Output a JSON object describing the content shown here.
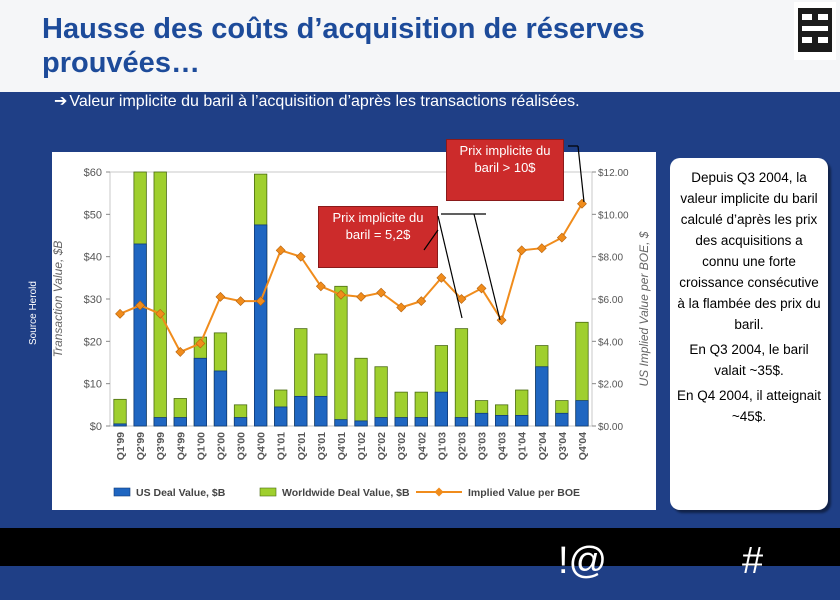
{
  "title": "Hausse des coûts d’acquisition de réserves prouvées…",
  "subtitle": "Valeur implicite du baril à l’acquisition d’après les transactions réalisées.",
  "source": "Source Herold",
  "callout": {
    "p1": "Depuis Q3 2004, la valeur implicite du baril calculé d’après les prix des acquisitions a connu une forte croissance consécutive à la flambée des prix du baril.",
    "p2": "En Q3 2004, le baril valait ~35$.",
    "p3": "En Q4 2004, il atteignait ~45$."
  },
  "bubbles": {
    "high": "Prix implicite du baril > 10$",
    "low": "Prix implicite du baril = 5,2$"
  },
  "footer": {
    "mark1": "!@",
    "mark2": "#"
  },
  "colors": {
    "us_bar": "#1f66c1",
    "ww_bar": "#9fcf2e",
    "line": "#f08c1c",
    "bubble": "#cc2b2b"
  },
  "chart_data": {
    "type": "bar",
    "categories": [
      "Q1'99",
      "Q2'99",
      "Q3'99",
      "Q4'99",
      "Q1'00",
      "Q2'00",
      "Q3'00",
      "Q4'00",
      "Q1'01",
      "Q2'01",
      "Q3'01",
      "Q4'01",
      "Q1'02",
      "Q2'02",
      "Q3'02",
      "Q4'02",
      "Q1'03",
      "Q2'03",
      "Q3'03",
      "Q4'03",
      "Q1'04",
      "Q2'04",
      "Q3'04",
      "Q4'04"
    ],
    "series": [
      {
        "name": "US Deal Value, $B",
        "type": "bar",
        "axis": "left",
        "values": [
          0.5,
          43,
          2,
          2,
          16,
          13,
          2,
          47.5,
          4.5,
          7,
          7,
          1.5,
          1.2,
          2,
          2,
          2,
          8,
          2,
          3,
          2.5,
          2.5,
          14,
          3,
          6
        ]
      },
      {
        "name": "Worldwide Deal Value, $B",
        "type": "bar",
        "axis": "left",
        "values": [
          6.3,
          60,
          60,
          6.5,
          21,
          22,
          5,
          59.5,
          8.5,
          23,
          17,
          33,
          16,
          14,
          8,
          8,
          19,
          23,
          6,
          5,
          8.5,
          19,
          6,
          24.5
        ]
      },
      {
        "name": "Implied Value per BOE",
        "type": "line",
        "axis": "right",
        "values": [
          5.3,
          5.7,
          5.3,
          3.5,
          3.9,
          6.1,
          5.9,
          5.9,
          8.3,
          8.0,
          6.6,
          6.2,
          6.1,
          6.3,
          5.6,
          5.9,
          7.0,
          6.0,
          6.5,
          5.0,
          8.3,
          8.4,
          8.9,
          10.5
        ]
      }
    ],
    "xlabel": "",
    "ylabel": "Transaction Value, $B",
    "y2label": "US Implied Value per BOE, $",
    "ylim": [
      0,
      60
    ],
    "y2lim": [
      0,
      12
    ],
    "yticks": [
      "$0",
      "$10",
      "$20",
      "$30",
      "$40",
      "$50",
      "$60"
    ],
    "y2ticks": [
      "$0.00",
      "$2.00",
      "$4.00",
      "$6.00",
      "$8.00",
      "$10.00",
      "$12.00"
    ],
    "legend": "bottom",
    "grid": false
  }
}
